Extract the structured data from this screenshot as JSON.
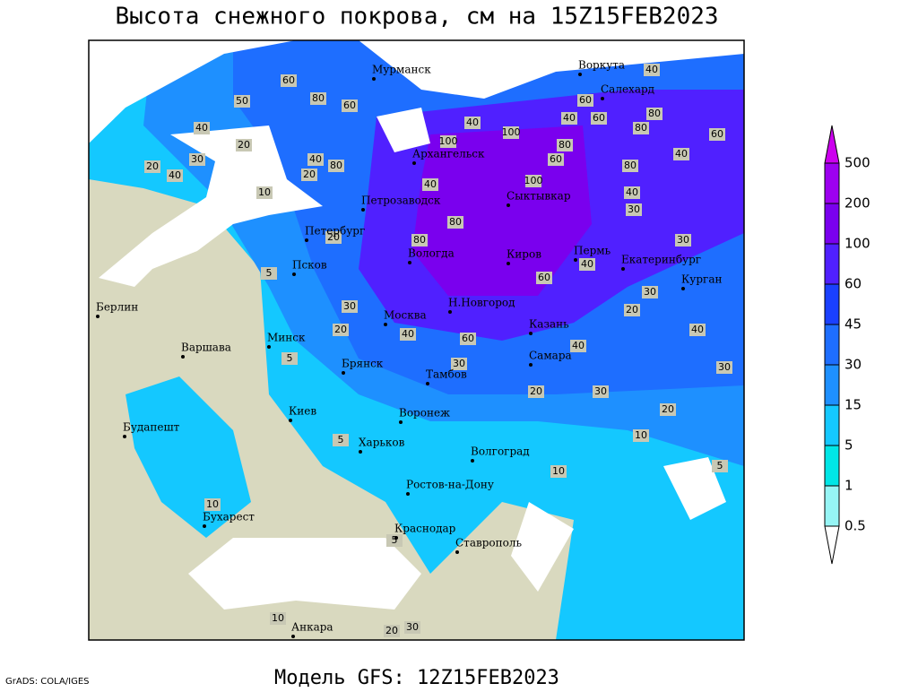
{
  "title": "Высота снежного покрова, см на 15Z15FEB2023",
  "footer": "Модель GFS: 12Z15FEB2023",
  "credit": "GrADS: COLA/IGES",
  "cities": [
    "Мурманск",
    "Воркута",
    "Салехард",
    "Архангельск",
    "Петрозаводск",
    "Сыктывкар",
    "Петербург",
    "Псков",
    "Вологда",
    "Киров",
    "Пермь",
    "Екатеринбург",
    "Курган",
    "Берлин",
    "Н.Новгород",
    "Москва",
    "Казань",
    "Минск",
    "Варшава",
    "Самара",
    "Брянск",
    "Тамбов",
    "Киев",
    "Воронеж",
    "Будапешт",
    "Харьков",
    "Волгоград",
    "Ростов-на-Дону",
    "Бухарест",
    "Краснодар",
    "Ставрополь",
    "Анкара"
  ],
  "contour_labels": [
    60,
    80,
    50,
    40,
    20,
    30,
    40,
    20,
    60,
    80,
    20,
    40,
    10,
    100,
    100,
    80,
    60,
    40,
    60,
    80,
    80,
    40,
    60,
    40,
    60,
    80,
    100,
    80,
    80,
    60,
    40,
    30,
    30,
    20,
    40,
    30,
    30,
    20,
    40,
    60,
    40,
    5,
    5,
    30,
    20,
    30,
    20,
    10,
    10,
    5,
    5,
    5,
    10,
    20,
    30,
    10,
    20,
    40,
    40,
    30,
    40
  ],
  "colorbar": {
    "labels": [
      500,
      200,
      100,
      60,
      45,
      30,
      15,
      5,
      1,
      0.5
    ],
    "colors": [
      "#cc00ee",
      "#9d00f0",
      "#7a00ee",
      "#5020ff",
      "#1a40ff",
      "#1e6eff",
      "#1e90ff",
      "#14c8ff",
      "#00e6e6",
      "#96f5f5",
      "#ffffff"
    ]
  }
}
